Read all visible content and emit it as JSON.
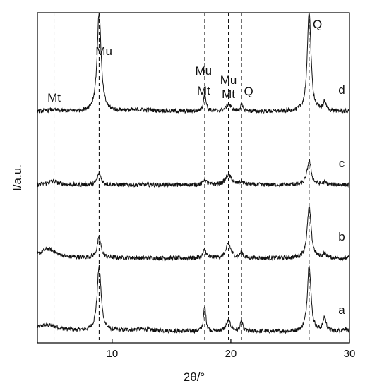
{
  "chart_data": {
    "type": "line",
    "xlabel": "2θ/°",
    "ylabel": "I/a.u.",
    "xlim": [
      3.7,
      30
    ],
    "x_ticks": [
      "10",
      "20",
      "30"
    ],
    "grid": false,
    "legend": "none",
    "reference_lines_2theta": [
      5.1,
      8.9,
      17.8,
      19.8,
      20.9,
      26.6
    ],
    "annotations": [
      {
        "text": "Mt",
        "x": 5.1
      },
      {
        "text": "Mu",
        "x": 9.3
      },
      {
        "text": "Mu",
        "x": 17.7
      },
      {
        "text": "Mt",
        "x": 17.7
      },
      {
        "text": "Mu",
        "x": 19.8
      },
      {
        "text": "Mt",
        "x": 19.8
      },
      {
        "text": "Q",
        "x": 21.5
      },
      {
        "text": "Q",
        "x": 27.3
      }
    ],
    "series": [
      {
        "name": "a",
        "baseline": 0,
        "peaks": [
          [
            4.5,
            9,
            1.2
          ],
          [
            8.9,
            92,
            0.2
          ],
          [
            12.5,
            3,
            1.5
          ],
          [
            17.8,
            35,
            0.12
          ],
          [
            19.8,
            14,
            0.25
          ],
          [
            20.9,
            14,
            0.12
          ],
          [
            26.6,
            95,
            0.18
          ],
          [
            27.9,
            20,
            0.15
          ],
          [
            29.6,
            4,
            0.2
          ]
        ]
      },
      {
        "name": "b",
        "baseline": 100,
        "peaks": [
          [
            4.6,
            13,
            0.8
          ],
          [
            8.9,
            28,
            0.2
          ],
          [
            17.8,
            12,
            0.15
          ],
          [
            19.8,
            20,
            0.25
          ],
          [
            20.9,
            8,
            0.15
          ],
          [
            26.6,
            72,
            0.2
          ],
          [
            27.9,
            6,
            0.15
          ]
        ]
      },
      {
        "name": "c",
        "baseline": 200,
        "peaks": [
          [
            5.0,
            5,
            0.5
          ],
          [
            8.9,
            16,
            0.2
          ],
          [
            17.8,
            8,
            0.15
          ],
          [
            19.8,
            14,
            0.3
          ],
          [
            20.9,
            4,
            0.2
          ],
          [
            26.6,
            34,
            0.2
          ],
          [
            27.9,
            3,
            0.2
          ]
        ]
      },
      {
        "name": "d",
        "baseline": 300,
        "peaks": [
          [
            5.0,
            2,
            0.5
          ],
          [
            8.9,
            140,
            0.2
          ],
          [
            12.5,
            2,
            1.5
          ],
          [
            17.8,
            28,
            0.12
          ],
          [
            19.8,
            10,
            0.25
          ],
          [
            20.9,
            9,
            0.12
          ],
          [
            26.6,
            145,
            0.18
          ],
          [
            27.9,
            12,
            0.15
          ]
        ]
      }
    ]
  }
}
